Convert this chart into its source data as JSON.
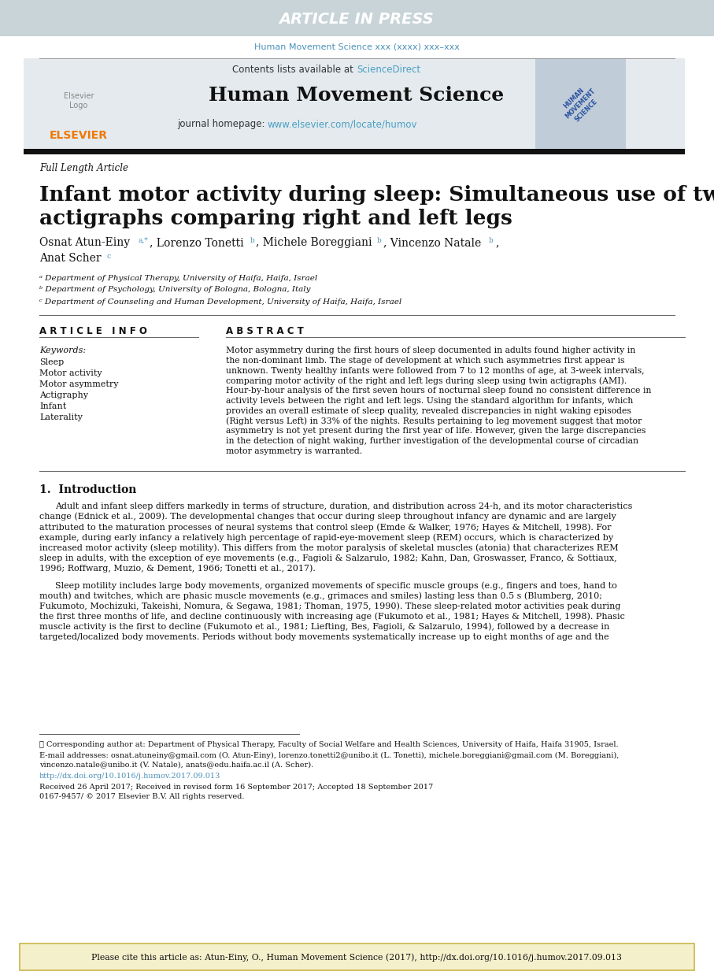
{
  "article_in_press_bg": "#c8d4d8",
  "article_in_press_text": "ARTICLE IN PRESS",
  "journal_ref_text": "Human Movement Science xxx (xxxx) xxx–xxx",
  "journal_ref_color": "#4a90b8",
  "journal_title": "Human Movement Science",
  "contents_text": "Contents lists available at ",
  "sciencedirect_text": "ScienceDirect",
  "sciencedirect_color": "#4a9fc4",
  "journal_homepage_text": "journal homepage: ",
  "journal_url": "www.elsevier.com/locate/humov",
  "journal_url_color": "#4a9fc4",
  "elsevier_color": "#f07800",
  "article_type": "Full Length Article",
  "paper_title_line1": "Infant motor activity during sleep: Simultaneous use of two",
  "paper_title_line2": "actigraphs comparing right and left legs",
  "affil_a": "ᵃ Department of Physical Therapy, University of Haifa, Haifa, Israel",
  "affil_b": "ᵇ Department of Psychology, University of Bologna, Bologna, Italy",
  "affil_c": "ᶜ Department of Counseling and Human Development, University of Haifa, Haifa, Israel",
  "article_info_title": "A R T I C L E   I N F O",
  "keywords_label": "Keywords:",
  "keywords": [
    "Sleep",
    "Motor activity",
    "Motor asymmetry",
    "Actigraphy",
    "Infant",
    "Laterality"
  ],
  "abstract_title": "A B S T R A C T",
  "abstract_lines": [
    "Motor asymmetry during the first hours of sleep documented in adults found higher activity in",
    "the non-dominant limb. The stage of development at which such asymmetries first appear is",
    "unknown. Twenty healthy infants were followed from 7 to 12 months of age, at 3-week intervals,",
    "comparing motor activity of the right and left legs during sleep using twin actigraphs (AMI).",
    "Hour-by-hour analysis of the first seven hours of nocturnal sleep found no consistent difference in",
    "activity levels between the right and left legs. Using the standard algorithm for infants, which",
    "provides an overall estimate of sleep quality, revealed discrepancies in night waking episodes",
    "(Right versus Left) in 33% of the nights. Results pertaining to leg movement suggest that motor",
    "asymmetry is not yet present during the first year of life. However, given the large discrepancies",
    "in the detection of night waking, further investigation of the developmental course of circadian",
    "motor asymmetry is warranted."
  ],
  "intro_title": "1.  Introduction",
  "intro_p1_lines": [
    "Adult and infant sleep differs markedly in terms of structure, duration, and distribution across 24-h, and its motor characteristics",
    "change (Ednick et al., 2009). The developmental changes that occur during sleep throughout infancy are dynamic and are largely",
    "attributed to the maturation processes of neural systems that control sleep (Emde & Walker, 1976; Hayes & Mitchell, 1998). For",
    "example, during early infancy a relatively high percentage of rapid-eye-movement sleep (REM) occurs, which is characterized by",
    "increased motor activity (sleep motility). This differs from the motor paralysis of skeletal muscles (atonia) that characterizes REM",
    "sleep in adults, with the exception of eye movements (e.g., Fagioli & Salzarulo, 1982; Kahn, Dan, Groswasser, Franco, & Sottiaux,",
    "1996; Roffwarg, Muzio, & Dement, 1966; Tonetti et al., 2017)."
  ],
  "intro_p2_lines": [
    "Sleep motility includes large body movements, organized movements of specific muscle groups (e.g., fingers and toes, hand to",
    "mouth) and twitches, which are phasic muscle movements (e.g., grimaces and smiles) lasting less than 0.5 s (Blumberg, 2010;",
    "Fukumoto, Mochizuki, Takeishi, Nomura, & Segawa, 1981; Thoman, 1975, 1990). These sleep-related motor activities peak during",
    "the first three months of life, and decline continuously with increasing age (Fukumoto et al., 1981; Hayes & Mitchell, 1998). Phasic",
    "muscle activity is the first to decline (Fukumoto et al., 1981; Liefting, Bes, Fagioli, & Salzarulo, 1994), followed by a decrease in",
    "targeted/localized body movements. Periods without body movements systematically increase up to eight months of age and the"
  ],
  "footnote_star": "⋆ Corresponding author at: Department of Physical Therapy, Faculty of Social Welfare and Health Sciences, University of Haifa, Haifa 31905, Israel.",
  "footnote_email_line1": "E-mail addresses: osnat.atuneiny@gmail.com (O. Atun-Einy), lorenzo.tonetti2@unibo.it (L. Tonetti), michele.boreggiani@gmail.com (M. Boreggiani),",
  "footnote_email_line2": "vincenzo.natale@unibo.it (V. Natale), anats@edu.haifa.ac.il (A. Scher).",
  "footnote_doi": "http://dx.doi.org/10.1016/j.humov.2017.09.013",
  "footnote_received": "Received 26 April 2017; Received in revised form 16 September 2017; Accepted 18 September 2017",
  "footnote_issn": "0167-9457/ © 2017 Elsevier B.V. All rights reserved.",
  "cite_bar_bg": "#f5f0cc",
  "cite_bar_border": "#c8b84a",
  "cite_text": "Please cite this article as: Atun-Einy, O., Human Movement Science (2017), http://dx.doi.org/10.1016/j.humov.2017.09.013",
  "link_color": "#4a90b8",
  "bg_color": "#ffffff",
  "header_bg": "#e4eaee",
  "watermark_bg": "#c0ccd8",
  "watermark_color": "#2850a0"
}
